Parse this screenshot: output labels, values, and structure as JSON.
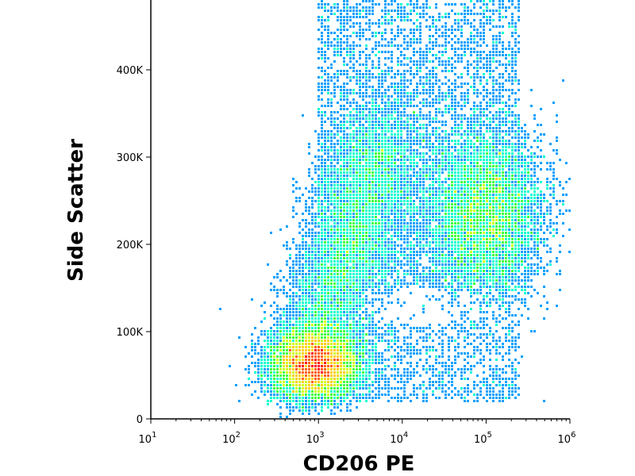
{
  "chart_data": {
    "type": "scatter",
    "plot_style": "flow-cytometry density dot plot (pseudocolor)",
    "title": "",
    "xlabel": "CD206 PE",
    "ylabel": "Side Scatter",
    "x_scale": "log",
    "xlim": [
      10,
      1000000
    ],
    "ylim": [
      0,
      480000
    ],
    "grid": false,
    "legend": "none",
    "x_ticks": [
      {
        "value": 10,
        "base": "10",
        "exp": "1"
      },
      {
        "value": 100,
        "base": "10",
        "exp": "2"
      },
      {
        "value": 1000,
        "base": "10",
        "exp": "3"
      },
      {
        "value": 10000,
        "base": "10",
        "exp": "4"
      },
      {
        "value": 100000,
        "base": "10",
        "exp": "5"
      },
      {
        "value": 1000000,
        "base": "10",
        "exp": "6"
      }
    ],
    "y_ticks": [
      {
        "value": 0,
        "label": "0"
      },
      {
        "value": 100000,
        "label": "100K"
      },
      {
        "value": 200000,
        "label": "200K"
      },
      {
        "value": 300000,
        "label": "300K"
      },
      {
        "value": 400000,
        "label": "400K"
      }
    ],
    "populations": [
      {
        "center_x": 900,
        "center_y": 65000,
        "relative_density": "very high (red core)"
      },
      {
        "center_x": 3000,
        "center_y": 190000,
        "relative_density": "medium (green/cyan streak)"
      },
      {
        "center_x": 100000,
        "center_y": 240000,
        "relative_density": "medium-high (green/yellow)"
      },
      {
        "center_x": 5000,
        "center_y": 400000,
        "relative_density": "low (blue scatter)"
      }
    ],
    "density_colors": [
      "#0000ff",
      "#00a0ff",
      "#00ffd0",
      "#40ff40",
      "#d0ff00",
      "#ffd000",
      "#ff6000",
      "#ff0000"
    ]
  }
}
